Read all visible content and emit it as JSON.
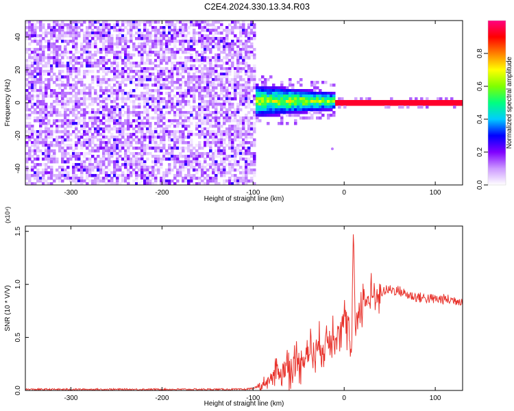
{
  "title": "C2E4.2024.330.13.34.R03",
  "chart_data": [
    {
      "type": "heatmap",
      "xlabel": "Height of straight line (km)",
      "ylabel": "Frequency (Hz)",
      "xlim": [
        -350,
        130
      ],
      "ylim": [
        -50,
        50
      ],
      "x_ticks": [
        -300,
        -200,
        -100,
        0,
        100
      ],
      "y_ticks": [
        -40,
        -20,
        0,
        20,
        40
      ],
      "colorbar": {
        "label": "Normalized spectral amplitude",
        "range": [
          0,
          1
        ],
        "ticks": [
          "0.0",
          "0.2",
          "0.4",
          "0.6",
          "0.8"
        ],
        "colormap": [
          "#ffffff",
          "#cc99ff",
          "#8000ff",
          "#0000ff",
          "#00ccff",
          "#00ff80",
          "#80ff00",
          "#ffff00",
          "#ff8000",
          "#ff0000",
          "#ff0080"
        ]
      },
      "regions": [
        {
          "x_range": [
            -350,
            -97
          ],
          "freq_range": [
            -50,
            50
          ],
          "amplitude_range": [
            0.0,
            0.15
          ],
          "pattern": "broadband noise"
        },
        {
          "x_range": [
            -97,
            -10
          ],
          "freq_range": [
            -8,
            10
          ],
          "amplitude_range": [
            0.2,
            0.7
          ],
          "pattern": "narrowing spectral band"
        },
        {
          "x_range": [
            -10,
            130
          ],
          "freq_center": 0,
          "freq_halfwidth": 1,
          "amplitude_range": [
            0.9,
            1.0
          ],
          "pattern": "narrow line at 0 Hz"
        }
      ],
      "features": [
        {
          "x": -13,
          "freq": -28,
          "amplitude": 0.12
        }
      ]
    },
    {
      "type": "line",
      "xlabel": "Height of straight line (km)",
      "ylabel": "SNR (10 * V/V)",
      "y_scale_label": "(x10⁴)",
      "xlim": [
        -350,
        130
      ],
      "ylim": [
        0,
        1.55
      ],
      "x_ticks": [
        -300,
        -200,
        -100,
        0,
        100
      ],
      "y_ticks": [
        "0.0",
        "0.5",
        "1.0",
        "1.5"
      ],
      "color": "#e8322b",
      "series": [
        {
          "x": [
            -350,
            -300,
            -200,
            -110,
            -100,
            -90,
            -80,
            -70,
            -60,
            -50,
            -40,
            -30,
            -20,
            -10,
            0,
            5,
            8,
            10,
            12,
            15,
            20,
            30,
            40,
            50,
            60,
            70,
            80,
            90,
            100,
            110,
            120,
            130
          ],
          "y": [
            0.01,
            0.01,
            0.01,
            0.01,
            0.02,
            0.05,
            0.12,
            0.18,
            0.22,
            0.28,
            0.35,
            0.4,
            0.45,
            0.55,
            0.65,
            0.55,
            0.25,
            1.55,
            0.6,
            0.75,
            0.82,
            0.88,
            0.93,
            0.95,
            0.94,
            0.9,
            0.88,
            0.87,
            0.86,
            0.86,
            0.85,
            0.85
          ]
        }
      ]
    }
  ]
}
